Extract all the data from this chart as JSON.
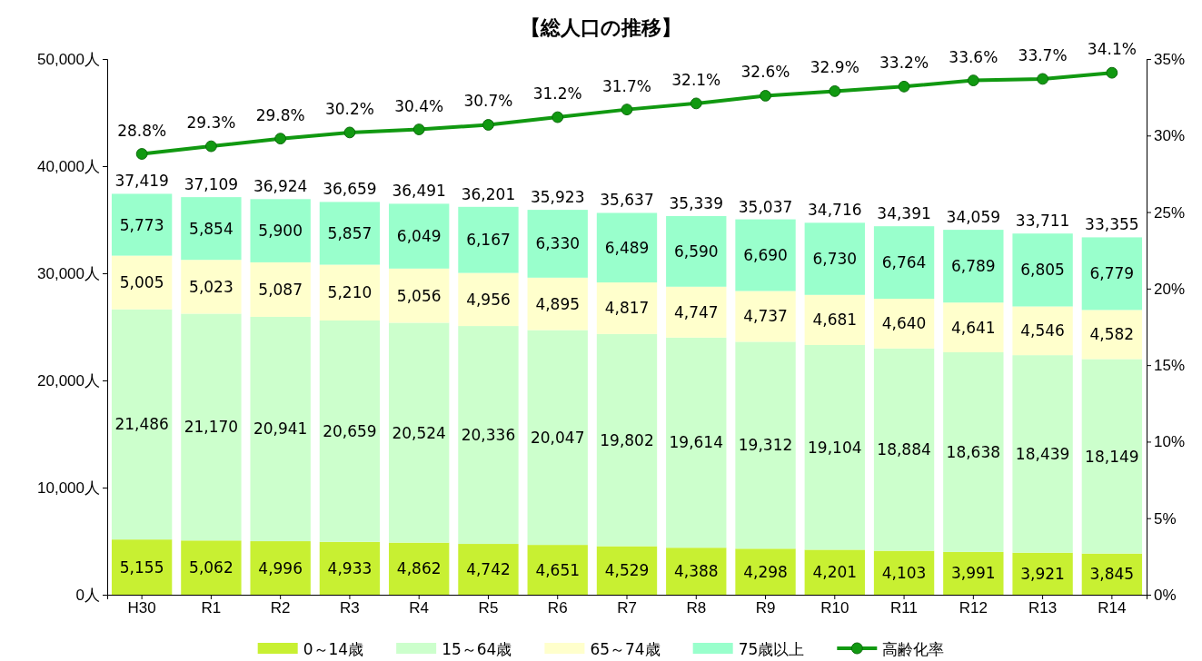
{
  "chart_data": {
    "type": "bar",
    "title": "【総人口の推移】",
    "stacked": true,
    "categories": [
      "H30",
      "R1",
      "R2",
      "R3",
      "R4",
      "R5",
      "R6",
      "R7",
      "R8",
      "R9",
      "R10",
      "R11",
      "R12",
      "R13",
      "R14"
    ],
    "series": [
      {
        "name": "0～14歳",
        "color": "#c8f032",
        "values": [
          5155,
          5062,
          4996,
          4933,
          4862,
          4742,
          4651,
          4529,
          4388,
          4298,
          4201,
          4103,
          3991,
          3921,
          3845
        ],
        "value_labels": [
          "5,155",
          "5,062",
          "4,996",
          "4,933",
          "4,862",
          "4,742",
          "4,651",
          "4,529",
          "4,388",
          "4,298",
          "4,201",
          "4,103",
          "3,991",
          "3,921",
          "3,845"
        ]
      },
      {
        "name": "15～64歳",
        "color": "#ccffcc",
        "values": [
          21486,
          21170,
          20941,
          20659,
          20524,
          20336,
          20047,
          19802,
          19614,
          19312,
          19104,
          18884,
          18638,
          18439,
          18149
        ],
        "value_labels": [
          "21,486",
          "21,170",
          "20,941",
          "20,659",
          "20,524",
          "20,336",
          "20,047",
          "19,802",
          "19,614",
          "19,312",
          "19,104",
          "18,884",
          "18,638",
          "18,439",
          "18,149"
        ]
      },
      {
        "name": "65～74歳",
        "color": "#ffffcc",
        "values": [
          5005,
          5023,
          5087,
          5210,
          5056,
          4956,
          4895,
          4817,
          4747,
          4737,
          4681,
          4640,
          4641,
          4546,
          4582
        ],
        "value_labels": [
          "5,005",
          "5,023",
          "5,087",
          "5,210",
          "5,056",
          "4,956",
          "4,895",
          "4,817",
          "4,747",
          "4,737",
          "4,681",
          "4,640",
          "4,641",
          "4,546",
          "4,582"
        ]
      },
      {
        "name": "75歳以上",
        "color": "#99ffcc",
        "values": [
          5773,
          5854,
          5900,
          5857,
          6049,
          6167,
          6330,
          6489,
          6590,
          6690,
          6730,
          6764,
          6789,
          6805,
          6779
        ],
        "value_labels": [
          "5,773",
          "5,854",
          "5,900",
          "5,857",
          "6,049",
          "6,167",
          "6,330",
          "6,489",
          "6,590",
          "6,690",
          "6,730",
          "6,764",
          "6,789",
          "6,805",
          "6,779"
        ]
      },
      {
        "name": "高齢化率",
        "type": "line",
        "axis": "y2",
        "color": "#119911",
        "marker": "circle",
        "values": [
          28.8,
          29.3,
          29.8,
          30.2,
          30.4,
          30.7,
          31.2,
          31.7,
          32.1,
          32.6,
          32.9,
          33.2,
          33.6,
          33.7,
          34.1
        ],
        "value_labels": [
          "28.8%",
          "29.3%",
          "29.8%",
          "30.2%",
          "30.4%",
          "30.7%",
          "31.2%",
          "31.7%",
          "32.1%",
          "32.6%",
          "32.9%",
          "33.2%",
          "33.6%",
          "33.7%",
          "34.1%"
        ]
      }
    ],
    "totals": [
      "37,419",
      "37,109",
      "36,924",
      "36,659",
      "36,491",
      "36,201",
      "35,923",
      "35,637",
      "35,339",
      "35,037",
      "34,716",
      "34,391",
      "34,059",
      "33,711",
      "33,355"
    ],
    "ylim": [
      0,
      50000
    ],
    "yticks": [
      {
        "value": 0,
        "label": "0人"
      },
      {
        "value": 10000,
        "label": "10,000人"
      },
      {
        "value": 20000,
        "label": "20,000人"
      },
      {
        "value": 30000,
        "label": "30,000人"
      },
      {
        "value": 40000,
        "label": "40,000人"
      },
      {
        "value": 50000,
        "label": "50,000人"
      }
    ],
    "y2lim": [
      0,
      35
    ],
    "y2ticks": [
      {
        "value": 0,
        "label": "0%"
      },
      {
        "value": 5,
        "label": "5%"
      },
      {
        "value": 10,
        "label": "10%"
      },
      {
        "value": 15,
        "label": "15%"
      },
      {
        "value": 20,
        "label": "20%"
      },
      {
        "value": 25,
        "label": "25%"
      },
      {
        "value": 30,
        "label": "30%"
      },
      {
        "value": 35,
        "label": "35%"
      }
    ],
    "legend": "bottom"
  }
}
